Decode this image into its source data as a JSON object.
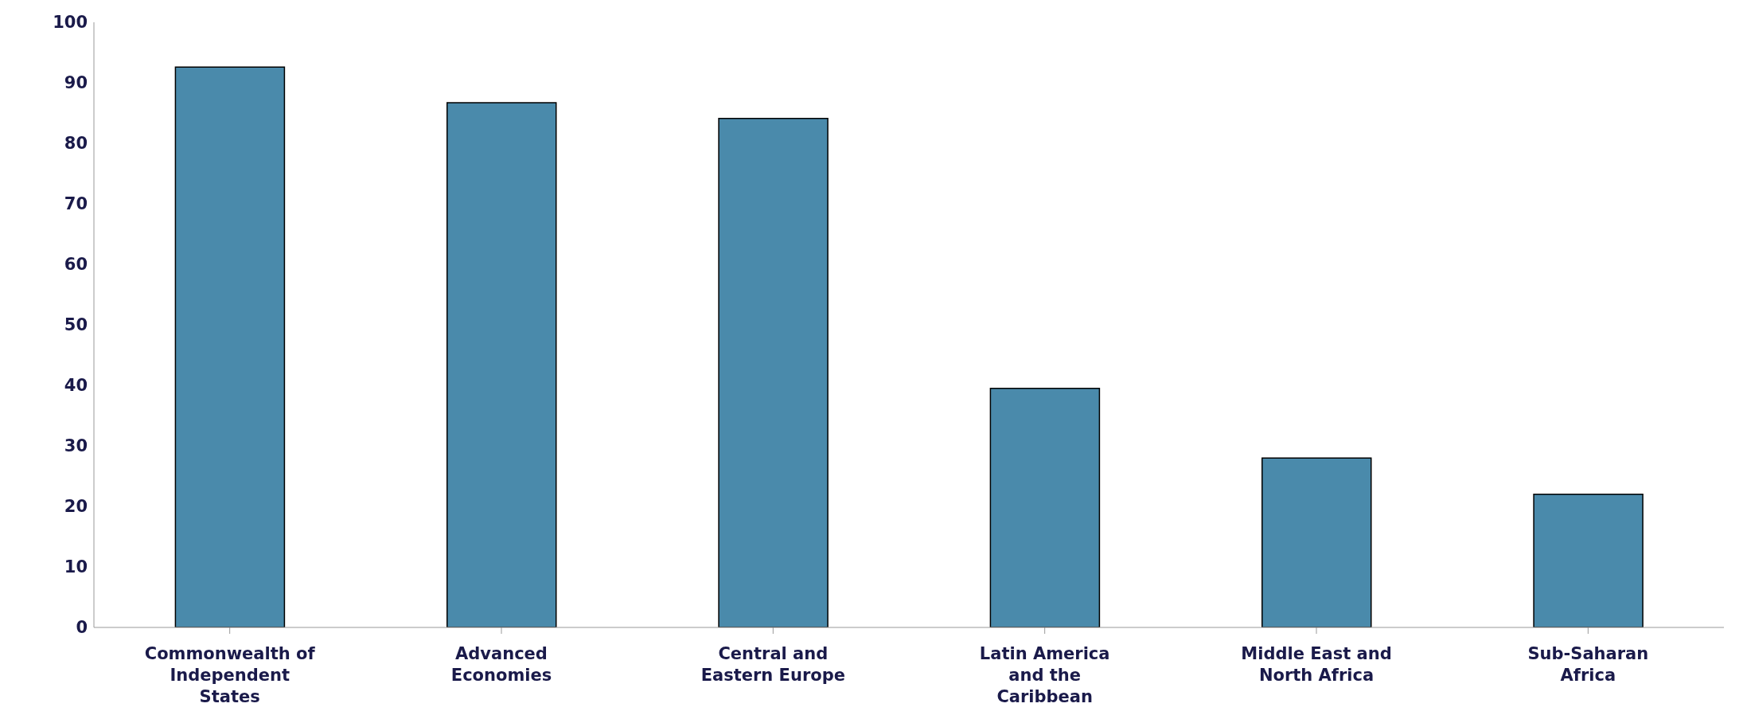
{
  "chart_data": {
    "type": "bar",
    "categories": [
      "Commonwealth of Independent States",
      "Advanced Economies",
      "Central and Eastern Europe",
      "Latin America and the Caribbean",
      "Middle East and North Africa",
      "Sub-Saharan Africa"
    ],
    "values": [
      92.6,
      86.7,
      84.1,
      39.5,
      28.0,
      22.0
    ],
    "color": "#4a8aab",
    "ylim": [
      0,
      100
    ],
    "yticks": [
      0,
      10,
      20,
      30,
      40,
      50,
      60,
      70,
      80,
      90,
      100
    ],
    "grid": false,
    "legend": false
  }
}
